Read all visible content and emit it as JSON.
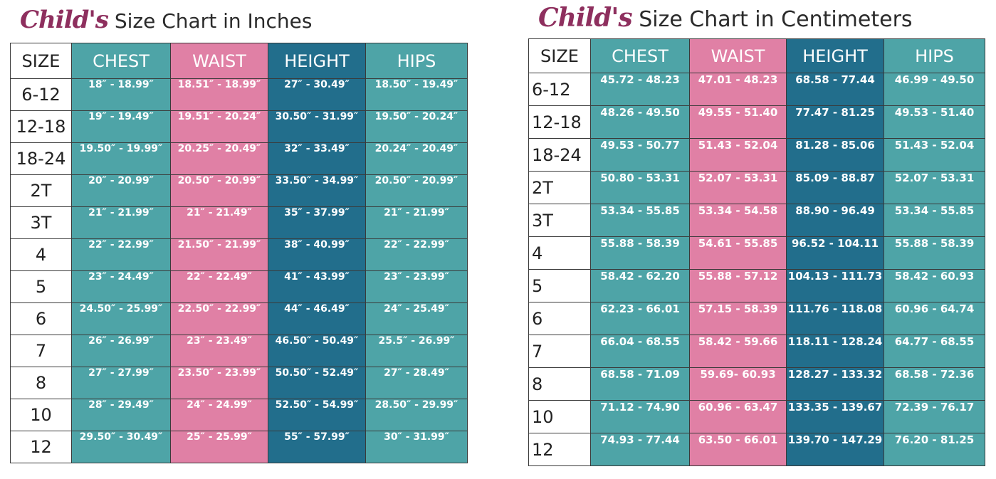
{
  "colors": {
    "chest": "#4ea4a7",
    "waist": "#e080a5",
    "height": "#226e8c",
    "hips": "#4ea4a7",
    "title_script": "#8e2f5e"
  },
  "charts": [
    {
      "title_script": "Child's",
      "title_rest": "Size Chart in Inches",
      "headers": [
        "SIZE",
        "CHEST",
        "WAIST",
        "HEIGHT",
        "HIPS"
      ],
      "rows": [
        [
          "6-12",
          "18″ - 18.99″",
          "18.51″ - 18.99″",
          "27″ - 30.49″",
          "18.50″ - 19.49″"
        ],
        [
          "12-18",
          "19″ - 19.49″",
          "19.51″ - 20.24″",
          "30.50″ - 31.99″",
          "19.50″ - 20.24″"
        ],
        [
          "18-24",
          "19.50″ - 19.99″",
          "20.25″ - 20.49″",
          "32″ - 33.49″",
          "20.24″ - 20.49″"
        ],
        [
          "2T",
          "20″ - 20.99″",
          "20.50″ - 20.99″",
          "33.50″ - 34.99″",
          "20.50″ - 20.99″"
        ],
        [
          "3T",
          "21″ - 21.99″",
          "21″ - 21.49″",
          "35″ - 37.99″",
          "21″ - 21.99″"
        ],
        [
          "4",
          "22″ - 22.99″",
          "21.50″ - 21.99″",
          "38″ - 40.99″",
          "22″ - 22.99″"
        ],
        [
          "5",
          "23″ - 24.49″",
          "22″ - 22.49″",
          "41″ - 43.99″",
          "23″ - 23.99″"
        ],
        [
          "6",
          "24.50″ - 25.99″",
          "22.50″ - 22.99″",
          "44″ - 46.49″",
          "24″ - 25.49″"
        ],
        [
          "7",
          "26″ - 26.99″",
          "23″ - 23.49″",
          "46.50″ - 50.49″",
          "25.5″ - 26.99″"
        ],
        [
          "8",
          "27″ - 27.99″",
          "23.50″ - 23.99″",
          "50.50″ - 52.49″",
          "27″ - 28.49″"
        ],
        [
          "10",
          "28″ - 29.49″",
          "24″ - 24.99″",
          "52.50″ - 54.99″",
          "28.50″ - 29.99″"
        ],
        [
          "12",
          "29.50″ - 30.49″",
          "25″ - 25.99″",
          "55″ - 57.99″",
          "30″ - 31.99″"
        ]
      ]
    },
    {
      "title_script": "Child's",
      "title_rest": "Size Chart in Centimeters",
      "headers": [
        "SIZE",
        "CHEST",
        "WAIST",
        "HEIGHT",
        "HIPS"
      ],
      "rows": [
        [
          "6-12",
          "45.72 - 48.23",
          "47.01 - 48.23",
          "68.58 - 77.44",
          "46.99 - 49.50"
        ],
        [
          "12-18",
          "48.26 - 49.50",
          "49.55 - 51.40",
          "77.47 - 81.25",
          "49.53 - 51.40"
        ],
        [
          "18-24",
          "49.53 - 50.77",
          "51.43 - 52.04",
          "81.28 - 85.06",
          "51.43 - 52.04"
        ],
        [
          "2T",
          "50.80 - 53.31",
          "52.07 - 53.31",
          "85.09 - 88.87",
          "52.07 - 53.31"
        ],
        [
          "3T",
          "53.34 - 55.85",
          "53.34 - 54.58",
          "88.90 - 96.49",
          "53.34 - 55.85"
        ],
        [
          "4",
          "55.88 - 58.39",
          "54.61 - 55.85",
          "96.52 - 104.11",
          "55.88 - 58.39"
        ],
        [
          "5",
          "58.42 - 62.20",
          "55.88 - 57.12",
          "104.13 - 111.73",
          "58.42 - 60.93"
        ],
        [
          "6",
          "62.23 - 66.01",
          "57.15 - 58.39",
          "111.76 - 118.08",
          "60.96 - 64.74"
        ],
        [
          "7",
          "66.04 - 68.55",
          "58.42 - 59.66",
          "118.11 - 128.24",
          "64.77 - 68.55"
        ],
        [
          "8",
          "68.58 - 71.09",
          "59.69- 60.93",
          "128.27 - 133.32",
          "68.58 - 72.36"
        ],
        [
          "10",
          "71.12 - 74.90",
          "60.96 - 63.47",
          "133.35 - 139.67",
          "72.39 - 76.17"
        ],
        [
          "12",
          "74.93 - 77.44",
          "63.50 - 66.01",
          "139.70 - 147.29",
          "76.20 - 81.25"
        ]
      ]
    }
  ]
}
